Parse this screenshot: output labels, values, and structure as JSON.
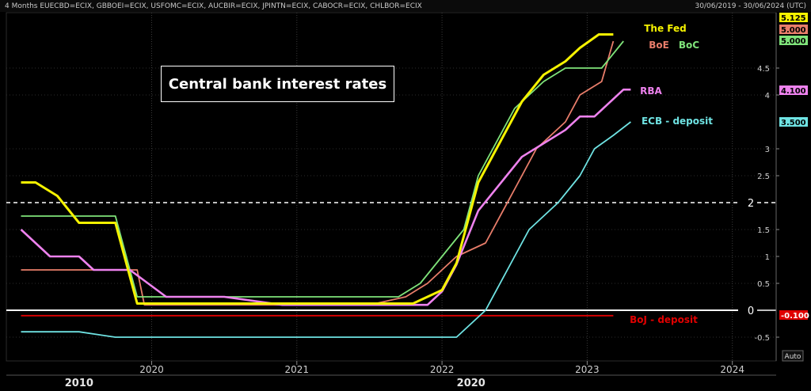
{
  "header": {
    "tickers": "4 Months EUECBD=ECIX, GBBOEI=ECIX, USFOMC=ECIX, AUCBIR=ECIX, JPINTN=ECIX, CABOCR=ECIX, CHLBOR=ECIX",
    "date_range": "30/06/2019 - 30/06/2024 (UTC)"
  },
  "scale_mode": "Auto",
  "colors": {
    "fed": "#f5f200",
    "boe": "#e87d6a",
    "boc": "#7fe37a",
    "rba": "#ee82ee",
    "ecb": "#6fe3e3",
    "boj": "#e00000",
    "background": "#000000"
  },
  "chart_data": {
    "type": "line",
    "title": "Central bank interest rates",
    "xlabel": "",
    "ylabel": "",
    "ylim": [
      -0.8,
      5.3
    ],
    "xlim": [
      2019.0,
      2024.3
    ],
    "x_ticks": [
      {
        "value": 2020,
        "label": "2020"
      },
      {
        "value": 2021,
        "label": "2021"
      },
      {
        "value": 2022,
        "label": "2022"
      },
      {
        "value": 2023,
        "label": "2023"
      },
      {
        "value": 2024,
        "label": "2024"
      }
    ],
    "y_ticks": [
      {
        "value": 4.5,
        "label": "4.5"
      },
      {
        "value": 4,
        "label": "4"
      },
      {
        "value": 3,
        "label": "3"
      },
      {
        "value": 2.5,
        "label": "2.5"
      },
      {
        "value": 1.5,
        "label": "1.5"
      },
      {
        "value": 1,
        "label": "1"
      },
      {
        "value": 0.5,
        "label": "0.5"
      },
      {
        "value": -0.5,
        "label": "-0.5"
      }
    ],
    "decade_labels": [
      {
        "value": 2019.5,
        "label": "2010"
      },
      {
        "value": 2022.2,
        "label": "2020"
      }
    ],
    "reference_lines": [
      {
        "value": 2,
        "label": "2",
        "style": "dashed"
      },
      {
        "value": 0,
        "label": "0",
        "style": "solid"
      }
    ],
    "grid": true,
    "series": [
      {
        "key": "fed",
        "name": "The Fed",
        "last_value": "5.125",
        "x": [
          2019.1,
          2019.2,
          2019.35,
          2019.5,
          2019.75,
          2019.9,
          2020.15,
          2020.5,
          2021.5,
          2021.8,
          2022.0,
          2022.1,
          2022.25,
          2022.4,
          2022.55,
          2022.7,
          2022.85,
          2022.95,
          2023.08,
          2023.18
        ],
        "y": [
          2.375,
          2.375,
          2.125,
          1.625,
          1.625,
          0.125,
          0.125,
          0.125,
          0.125,
          0.125,
          0.375,
          0.875,
          2.375,
          3.125,
          3.875,
          4.375,
          4.625,
          4.875,
          5.125,
          5.125
        ]
      },
      {
        "key": "boe",
        "name": "BoE",
        "last_value": "5.000",
        "x": [
          2019.1,
          2019.9,
          2019.95,
          2020.2,
          2021.5,
          2021.75,
          2021.9,
          2022.1,
          2022.3,
          2022.5,
          2022.65,
          2022.85,
          2022.95,
          2023.1,
          2023.18
        ],
        "y": [
          0.75,
          0.75,
          0.1,
          0.1,
          0.1,
          0.25,
          0.5,
          1.0,
          1.25,
          2.25,
          3.0,
          3.5,
          4.0,
          4.25,
          5.0
        ]
      },
      {
        "key": "boc",
        "name": "BoC",
        "last_value": "5.000",
        "x": [
          2019.1,
          2019.75,
          2019.9,
          2020.3,
          2021.7,
          2021.85,
          2022.0,
          2022.15,
          2022.25,
          2022.5,
          2022.7,
          2022.85,
          2022.95,
          2023.1,
          2023.25
        ],
        "y": [
          1.75,
          1.75,
          0.25,
          0.25,
          0.25,
          0.5,
          1.0,
          1.5,
          2.5,
          3.75,
          4.25,
          4.5,
          4.5,
          4.5,
          5.0
        ]
      },
      {
        "key": "rba",
        "name": "RBA",
        "last_value": "4.100",
        "x": [
          2019.1,
          2019.3,
          2019.5,
          2019.6,
          2019.85,
          2020.1,
          2020.5,
          2020.9,
          2021.5,
          2021.9,
          2022.0,
          2022.1,
          2022.25,
          2022.4,
          2022.55,
          2022.7,
          2022.85,
          2022.95,
          2023.05,
          2023.15,
          2023.25,
          2023.3
        ],
        "y": [
          1.5,
          1.0,
          1.0,
          0.75,
          0.75,
          0.25,
          0.25,
          0.1,
          0.1,
          0.1,
          0.35,
          0.85,
          1.85,
          2.35,
          2.85,
          3.1,
          3.35,
          3.6,
          3.6,
          3.85,
          4.1,
          4.1
        ]
      },
      {
        "key": "ecb",
        "name": "ECB - deposit",
        "last_value": "3.500",
        "x": [
          2019.1,
          2019.5,
          2019.75,
          2020.0,
          2021.0,
          2022.1,
          2022.3,
          2022.45,
          2022.6,
          2022.8,
          2022.95,
          2023.05,
          2023.18,
          2023.3
        ],
        "y": [
          -0.4,
          -0.4,
          -0.5,
          -0.5,
          -0.5,
          -0.5,
          0.0,
          0.75,
          1.5,
          2.0,
          2.5,
          3.0,
          3.25,
          3.5
        ]
      },
      {
        "key": "boj",
        "name": "BoJ - deposit",
        "last_value": "-0.100",
        "x": [
          2019.1,
          2023.18
        ],
        "y": [
          -0.1,
          -0.1
        ]
      }
    ]
  }
}
